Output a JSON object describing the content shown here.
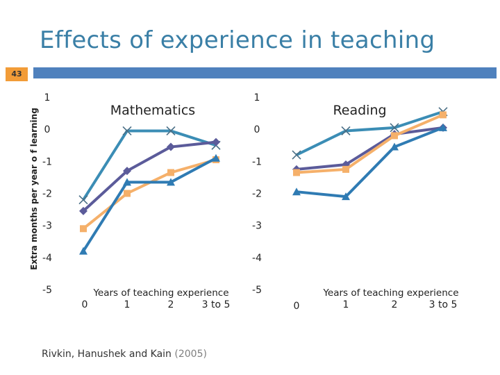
{
  "slide": {
    "title": "Effects of experience in teaching",
    "number": "43",
    "citation_authors": "Rivkin, Hanushek and Kain",
    "citation_year": "(2005)",
    "colors": {
      "title": "#3a7fa6",
      "header_bar": "#4f81bd",
      "slide_number_bg": "#f29c38"
    }
  },
  "chart_data": [
    {
      "type": "line",
      "title": "Mathematics",
      "xlabel": "Years of teaching experience",
      "ylabel": "Extra months per year o f learning",
      "categories": [
        "0",
        "1",
        "2",
        "3 to 5"
      ],
      "ylim": [
        -5,
        1
      ],
      "yticks": [
        "1",
        "0",
        "-1",
        "-2",
        "-3",
        "-4",
        "-5"
      ],
      "series": [
        {
          "name": "series-cross",
          "marker": "x",
          "color": "#3b8db5",
          "values": [
            -2.2,
            -0.05,
            -0.05,
            -0.5
          ]
        },
        {
          "name": "series-diamond",
          "marker": "diamond",
          "color": "#5b5b9a",
          "values": [
            -2.55,
            -1.3,
            -0.55,
            -0.4
          ]
        },
        {
          "name": "series-square",
          "marker": "square",
          "color": "#f5b06a",
          "values": [
            -3.1,
            -2.0,
            -1.35,
            -0.95
          ]
        },
        {
          "name": "series-triangle",
          "marker": "triangle",
          "color": "#2f7bb3",
          "values": [
            -3.8,
            -1.65,
            -1.65,
            -0.9
          ]
        }
      ]
    },
    {
      "type": "line",
      "title": "Reading",
      "xlabel": "Years of teaching experience",
      "ylabel": "",
      "categories": [
        "0",
        "1",
        "2",
        "3 to 5"
      ],
      "ylim": [
        -5,
        1
      ],
      "yticks": [
        "1",
        "0",
        "-1",
        "-2",
        "-3",
        "-4",
        "-5"
      ],
      "series": [
        {
          "name": "series-cross",
          "marker": "x",
          "color": "#3b8db5",
          "values": [
            -0.8,
            -0.05,
            0.05,
            0.55
          ]
        },
        {
          "name": "series-diamond",
          "marker": "diamond",
          "color": "#5b5b9a",
          "values": [
            -1.25,
            -1.1,
            -0.15,
            0.05
          ]
        },
        {
          "name": "series-square",
          "marker": "square",
          "color": "#f5b06a",
          "values": [
            -1.35,
            -1.25,
            -0.2,
            0.45
          ]
        },
        {
          "name": "series-triangle",
          "marker": "triangle",
          "color": "#2f7bb3",
          "values": [
            -1.95,
            -2.1,
            -0.55,
            0.05
          ]
        }
      ]
    }
  ]
}
